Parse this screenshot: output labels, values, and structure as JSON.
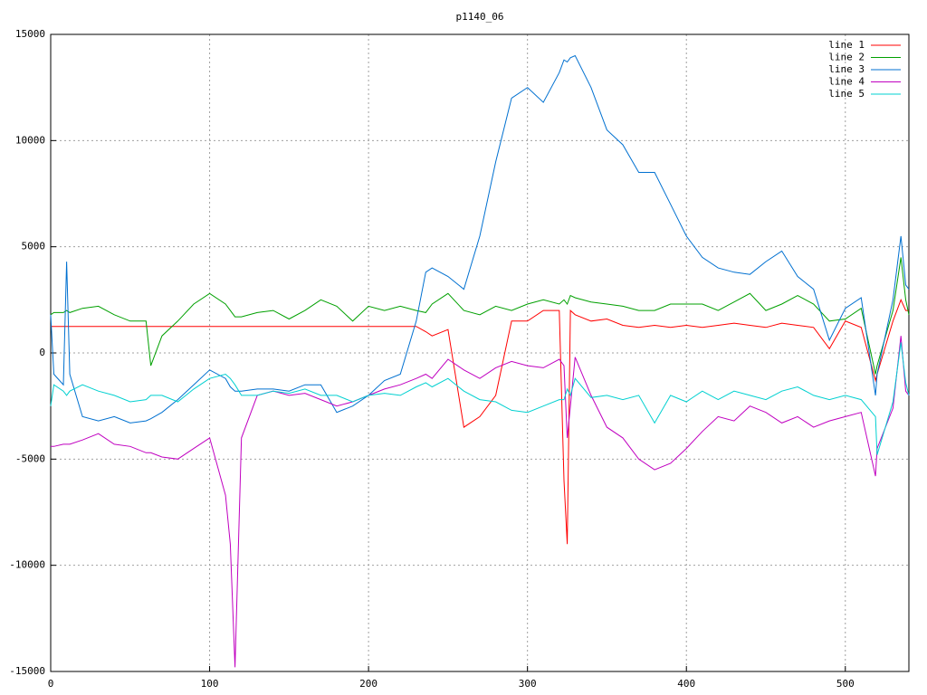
{
  "chart_data": {
    "type": "line",
    "title": "p1140_06",
    "x": [
      0,
      2,
      8,
      10,
      12,
      20,
      30,
      40,
      50,
      60,
      63,
      70,
      80,
      90,
      100,
      110,
      113,
      116,
      120,
      130,
      140,
      150,
      160,
      170,
      180,
      190,
      200,
      210,
      220,
      230,
      236,
      240,
      250,
      260,
      270,
      280,
      290,
      300,
      310,
      320,
      323,
      325,
      327,
      330,
      340,
      350,
      360,
      370,
      380,
      390,
      400,
      410,
      420,
      430,
      440,
      450,
      460,
      470,
      480,
      490,
      500,
      510,
      519,
      520,
      530,
      535,
      538,
      540
    ],
    "series": [
      {
        "name": "line 1",
        "color": "#ff0000",
        "values": [
          1250,
          1250,
          1250,
          1250,
          1250,
          1250,
          1250,
          1250,
          1250,
          1250,
          1250,
          1250,
          1250,
          1250,
          1250,
          1250,
          1250,
          1250,
          1250,
          1250,
          1250,
          1250,
          1250,
          1250,
          1250,
          1250,
          1250,
          1250,
          1250,
          1250,
          1000,
          800,
          1100,
          -3500,
          -3000,
          -2000,
          1500,
          1500,
          2000,
          2000,
          -6000,
          -9000,
          2000,
          1800,
          1500,
          1600,
          1300,
          1200,
          1300,
          1200,
          1300,
          1200,
          1300,
          1400,
          1300,
          1200,
          1400,
          1300,
          1200,
          200,
          1500,
          1200,
          -1300,
          -1000,
          1500,
          2500,
          2000,
          2000
        ]
      },
      {
        "name": "line 2",
        "color": "#00a000",
        "values": [
          1800,
          1900,
          1900,
          2000,
          1900,
          2100,
          2200,
          1800,
          1500,
          1500,
          -600,
          800,
          1500,
          2300,
          2800,
          2300,
          2000,
          1700,
          1700,
          1900,
          2000,
          1600,
          2000,
          2500,
          2200,
          1500,
          2200,
          2000,
          2200,
          2000,
          1900,
          2300,
          2800,
          2000,
          1800,
          2200,
          2000,
          2300,
          2500,
          2300,
          2500,
          2300,
          2700,
          2600,
          2400,
          2300,
          2200,
          2000,
          2000,
          2300,
          2300,
          2300,
          2000,
          2400,
          2800,
          2000,
          2300,
          2700,
          2300,
          1500,
          1600,
          2100,
          -1000,
          -600,
          2000,
          4500,
          2500,
          1800
        ]
      },
      {
        "name": "line 3",
        "color": "#0070d0",
        "values": [
          1800,
          -1000,
          -1500,
          4300,
          -1000,
          -3000,
          -3200,
          -3000,
          -3300,
          -3200,
          -3100,
          -2800,
          -2200,
          -1500,
          -800,
          -1200,
          -1600,
          -1800,
          -1800,
          -1700,
          -1700,
          -1800,
          -1500,
          -1500,
          -2800,
          -2500,
          -2000,
          -1300,
          -1000,
          1500,
          3800,
          4000,
          3600,
          3000,
          5500,
          9000,
          12000,
          12500,
          11800,
          13200,
          13800,
          13700,
          13900,
          14000,
          12500,
          10500,
          9800,
          8500,
          8500,
          7000,
          5500,
          4500,
          4000,
          3800,
          3700,
          4300,
          4800,
          3600,
          3000,
          600,
          2100,
          2600,
          -2000,
          -1000,
          2500,
          5500,
          3200,
          3000
        ]
      },
      {
        "name": "line 4",
        "color": "#c000c0",
        "values": [
          -4400,
          -4400,
          -4300,
          -4300,
          -4300,
          -4100,
          -3800,
          -4300,
          -4400,
          -4700,
          -4700,
          -4900,
          -5000,
          -4500,
          -4000,
          -6700,
          -9000,
          -14800,
          -4000,
          -2000,
          -1800,
          -2000,
          -1900,
          -2200,
          -2500,
          -2300,
          -2000,
          -1700,
          -1500,
          -1200,
          -1000,
          -1200,
          -300,
          -800,
          -1200,
          -700,
          -400,
          -600,
          -700,
          -300,
          -600,
          -4000,
          -2500,
          -200,
          -2000,
          -3500,
          -4000,
          -5000,
          -5500,
          -5200,
          -4500,
          -3700,
          -3000,
          -3200,
          -2500,
          -2800,
          -3300,
          -3000,
          -3500,
          -3200,
          -3000,
          -2800,
          -5800,
          -4500,
          -2600,
          800,
          -1800,
          -2000
        ]
      },
      {
        "name": "line 5",
        "color": "#00d0d0",
        "values": [
          -2500,
          -1500,
          -1800,
          -2000,
          -1800,
          -1500,
          -1800,
          -2000,
          -2300,
          -2200,
          -2000,
          -2000,
          -2300,
          -1700,
          -1200,
          -1000,
          -1200,
          -1500,
          -2000,
          -2000,
          -1800,
          -1900,
          -1700,
          -2000,
          -2000,
          -2300,
          -2000,
          -1900,
          -2000,
          -1600,
          -1400,
          -1600,
          -1200,
          -1800,
          -2200,
          -2300,
          -2700,
          -2800,
          -2500,
          -2200,
          -2200,
          -1700,
          -2000,
          -1200,
          -2100,
          -2000,
          -2200,
          -2000,
          -3300,
          -2000,
          -2300,
          -1800,
          -2200,
          -1800,
          -2000,
          -2200,
          -1800,
          -1600,
          -2000,
          -2200,
          -2000,
          -2200,
          -3000,
          -4800,
          -2300,
          500,
          -1400,
          -2000
        ]
      }
    ],
    "xlim": [
      0,
      540
    ],
    "xticks": [
      0,
      100,
      200,
      300,
      400,
      500
    ],
    "ylim": [
      -15000,
      15000
    ],
    "yticks": [
      -15000,
      -10000,
      -5000,
      0,
      5000,
      10000,
      15000
    ],
    "grid": true,
    "legend": "top-right"
  }
}
